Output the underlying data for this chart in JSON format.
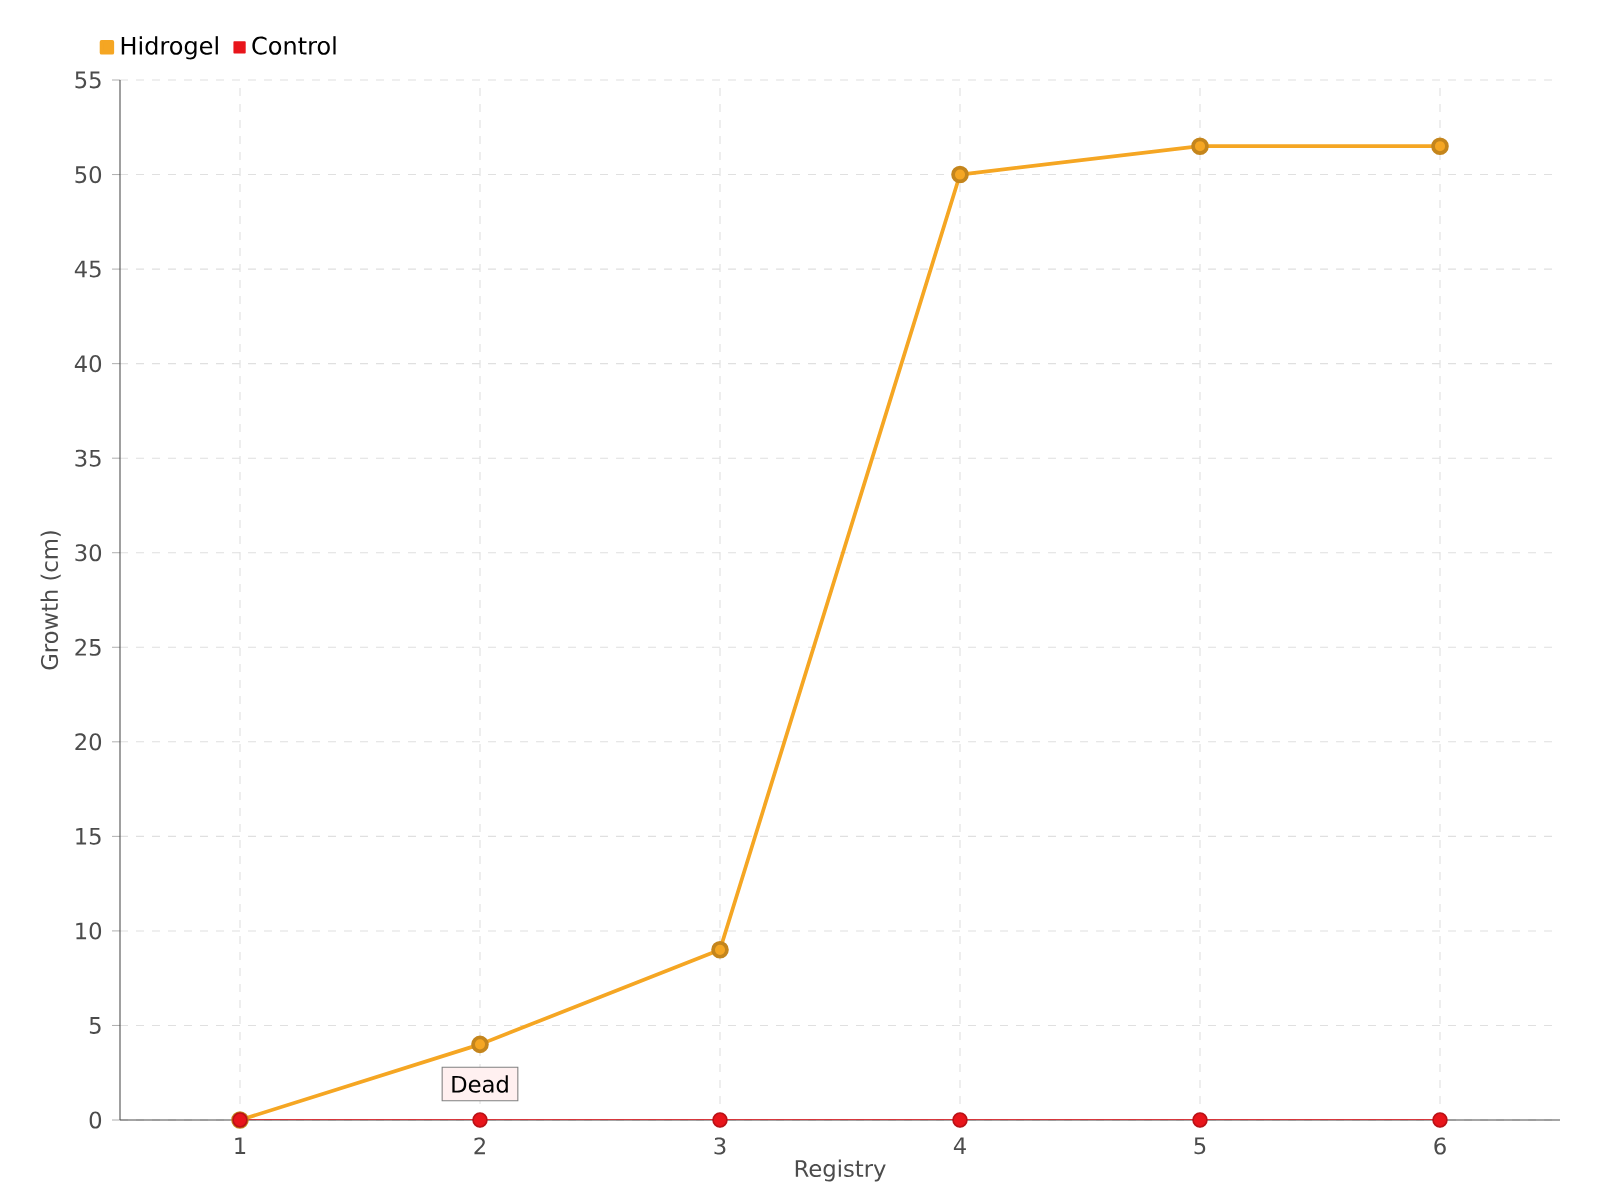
{
  "chart_data": {
    "type": "line",
    "xlabel": "Registry",
    "ylabel": "Growth (cm)",
    "categories": [
      "1",
      "2",
      "3",
      "4",
      "5",
      "6"
    ],
    "series": [
      {
        "name": "Hidrogel",
        "color": "#f5a623",
        "values": [
          0,
          4,
          9,
          50,
          51.5,
          51.5
        ]
      },
      {
        "name": "Control",
        "color": "#e8151b",
        "values": [
          0,
          0,
          0,
          0,
          0,
          0
        ]
      }
    ],
    "ylim": [
      0,
      55
    ],
    "yticks": [
      0,
      5,
      10,
      15,
      20,
      25,
      30,
      35,
      40,
      45,
      50,
      55
    ],
    "grid": true,
    "legend": "top left",
    "marker": "circle",
    "line_style": "solid",
    "annotations": [
      {
        "text": "Dead",
        "x": "2",
        "y": 0
      }
    ]
  }
}
